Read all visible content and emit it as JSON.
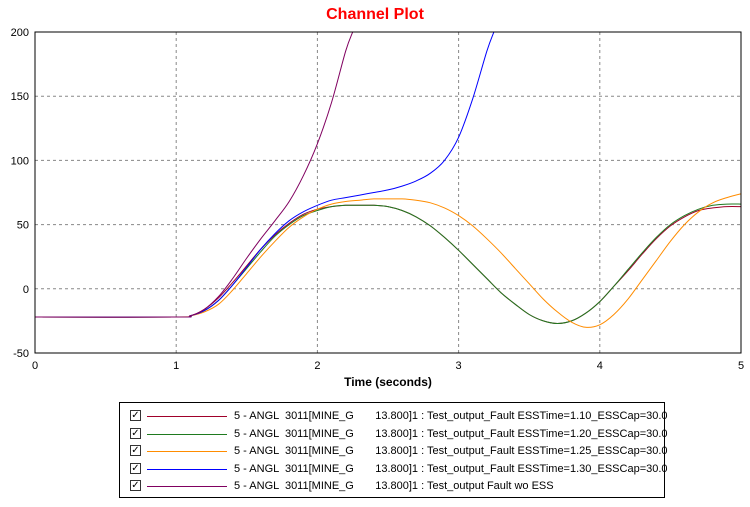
{
  "chart_data": {
    "type": "line",
    "title": "Channel Plot",
    "xlabel": "Time (seconds)",
    "ylabel": "",
    "xlim": [
      0,
      5
    ],
    "ylim": [
      -50,
      200
    ],
    "xticks": [
      0,
      1,
      2,
      3,
      4,
      5
    ],
    "yticks": [
      -50,
      0,
      50,
      100,
      150,
      200
    ],
    "grid": true,
    "series": [
      {
        "name": "5 - ANGL  3011[MINE_G       13.800]1 : Test_output_Fault ESSTime=1.10_ESSCap=30.0",
        "color": "#a0002a",
        "checked": true,
        "x": [
          0,
          1.0,
          1.1,
          1.2,
          1.3,
          1.4,
          1.5,
          1.6,
          1.7,
          1.8,
          1.9,
          2.0,
          2.1,
          2.2,
          2.3,
          2.4,
          2.5,
          2.6,
          2.7,
          2.8,
          2.9,
          3.0,
          3.1,
          3.2,
          3.3,
          3.4,
          3.5,
          3.6,
          3.7,
          3.8,
          3.9,
          4.0,
          4.1,
          4.2,
          4.3,
          4.4,
          4.5,
          4.6,
          4.7,
          4.8,
          4.9,
          5.0
        ],
        "y": [
          -22,
          -22,
          -21,
          -16,
          -7,
          5,
          18,
          31,
          42,
          51,
          58,
          62,
          64,
          65,
          65,
          65,
          64,
          61,
          56,
          49,
          40,
          30,
          19,
          8,
          -3,
          -12,
          -20,
          -25,
          -27,
          -25,
          -19,
          -10,
          2,
          14,
          27,
          39,
          49,
          56,
          61,
          63,
          64,
          64
        ]
      },
      {
        "name": "5 - ANGL  3011[MINE_G       13.800]1 : Test_output_Fault ESSTime=1.20_ESSCap=30.0",
        "color": "#1f7a1f",
        "checked": true,
        "x": [
          0,
          1.0,
          1.1,
          1.2,
          1.3,
          1.4,
          1.5,
          1.6,
          1.7,
          1.8,
          1.9,
          2.0,
          2.1,
          2.2,
          2.3,
          2.4,
          2.5,
          2.6,
          2.7,
          2.8,
          2.9,
          3.0,
          3.1,
          3.2,
          3.3,
          3.4,
          3.5,
          3.6,
          3.7,
          3.8,
          3.9,
          4.0,
          4.1,
          4.2,
          4.3,
          4.4,
          4.5,
          4.6,
          4.7,
          4.8,
          4.9,
          5.0
        ],
        "y": [
          -22,
          -22,
          -21,
          -17,
          -9,
          3,
          16,
          29,
          41,
          50,
          57,
          61,
          64,
          65,
          65,
          65,
          64,
          61,
          56,
          49,
          40,
          30,
          19,
          8,
          -3,
          -12,
          -20,
          -25,
          -27,
          -25,
          -19,
          -10,
          2,
          15,
          28,
          40,
          50,
          57,
          62,
          65,
          66,
          66
        ]
      },
      {
        "name": "5 - ANGL  3011[MINE_G       13.800]1 : Test_output_Fault ESSTime=1.25_ESSCap=30.0",
        "color": "#ff8c00",
        "checked": true,
        "x": [
          0,
          1.0,
          1.1,
          1.2,
          1.3,
          1.4,
          1.5,
          1.6,
          1.7,
          1.8,
          1.9,
          2.0,
          2.1,
          2.2,
          2.3,
          2.4,
          2.5,
          2.6,
          2.7,
          2.8,
          2.9,
          3.0,
          3.1,
          3.2,
          3.3,
          3.4,
          3.5,
          3.6,
          3.7,
          3.8,
          3.9,
          4.0,
          4.1,
          4.2,
          4.3,
          4.4,
          4.5,
          4.6,
          4.7,
          4.8,
          4.9,
          5.0
        ],
        "y": [
          -22,
          -22,
          -21,
          -18,
          -12,
          -1,
          12,
          25,
          37,
          48,
          56,
          62,
          66,
          68,
          69,
          70,
          70,
          70,
          69,
          67,
          63,
          57,
          49,
          39,
          28,
          16,
          4,
          -8,
          -18,
          -26,
          -30,
          -28,
          -20,
          -8,
          7,
          22,
          37,
          50,
          60,
          67,
          71,
          74
        ]
      },
      {
        "name": "5 - ANGL  3011[MINE_G       13.800]1 : Test_output_Fault ESSTime=1.30_ESSCap=30.0",
        "color": "#0000ff",
        "checked": true,
        "x": [
          0,
          1.0,
          1.1,
          1.2,
          1.3,
          1.4,
          1.5,
          1.6,
          1.7,
          1.8,
          1.9,
          2.0,
          2.1,
          2.2,
          2.3,
          2.4,
          2.5,
          2.6,
          2.7,
          2.8,
          2.9,
          3.0,
          3.1,
          3.2,
          3.25
        ],
        "y": [
          -22,
          -22,
          -21,
          -17,
          -9,
          3,
          17,
          31,
          43,
          53,
          60,
          65,
          69,
          71,
          73,
          75,
          77,
          80,
          84,
          90,
          100,
          118,
          148,
          185,
          200
        ]
      },
      {
        "name": "5 - ANGL  3011[MINE_G       13.800]1 : Test_output Fault wo ESS",
        "color": "#800060",
        "checked": true,
        "x": [
          0,
          1.0,
          1.1,
          1.2,
          1.3,
          1.4,
          1.5,
          1.6,
          1.7,
          1.8,
          1.9,
          2.0,
          2.1,
          2.2,
          2.25
        ],
        "y": [
          -22,
          -22,
          -21,
          -16,
          -6,
          8,
          24,
          39,
          53,
          68,
          88,
          113,
          145,
          185,
          200
        ]
      }
    ]
  }
}
